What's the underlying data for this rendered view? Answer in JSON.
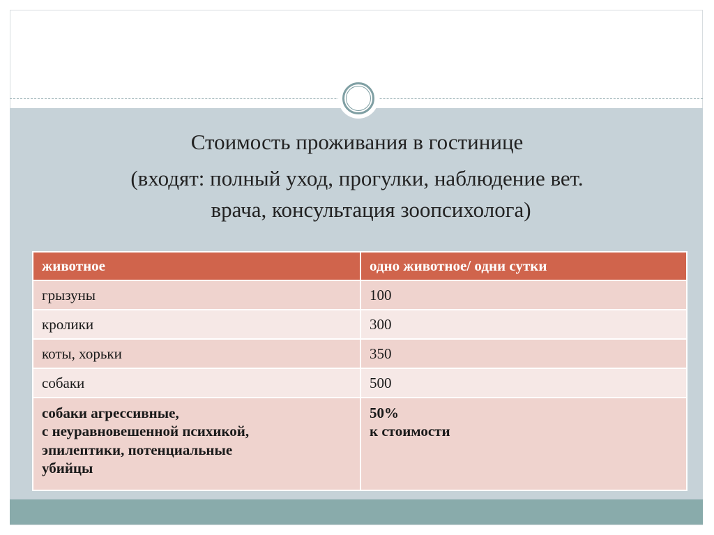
{
  "title": {
    "line1": "Стоимость проживания в гостинице",
    "line2": "(входят: полный уход, прогулки, наблюдение вет.",
    "line3": "врача, консультация зоопсихолога)"
  },
  "table": {
    "headers": [
      "животное",
      "одно животное/ одни сутки"
    ],
    "rows": [
      [
        "грызуны",
        "100"
      ],
      [
        "кролики",
        "300"
      ],
      [
        "коты, хорьки",
        "350"
      ],
      [
        "собаки",
        "500"
      ]
    ],
    "last_row": {
      "animal": [
        "собаки агрессивные,",
        "с неуравновешенной психикой,",
        "эпилептики, потенциальные",
        "убийцы"
      ],
      "price": [
        "50%",
        "к стоимости"
      ]
    }
  },
  "colors": {
    "header": "#d0644c",
    "row_odd": "#efd3ce",
    "row_even": "#f6e8e6",
    "band": "#c6d2d8",
    "footer": "#89abab"
  }
}
